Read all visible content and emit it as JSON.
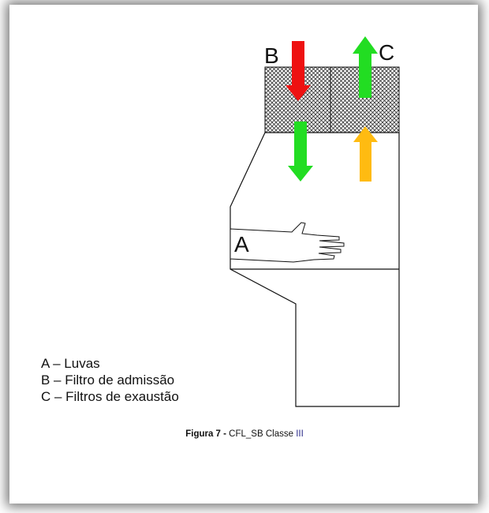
{
  "labels": {
    "a": "A",
    "b": "B",
    "c": "C"
  },
  "legend": [
    "A – Luvas",
    "B – Filtro de admissão",
    "C – Filtros de exaustão"
  ],
  "caption": {
    "number": "Figura 7 - ",
    "title": "CFL_SB Classe ",
    "suffix": "III"
  },
  "colors": {
    "inflow_arrow": "#ee1111",
    "exhaust_arrow": "#22dd22",
    "downflow_arrow": "#22dd22",
    "return_arrow": "#ffbb11"
  }
}
